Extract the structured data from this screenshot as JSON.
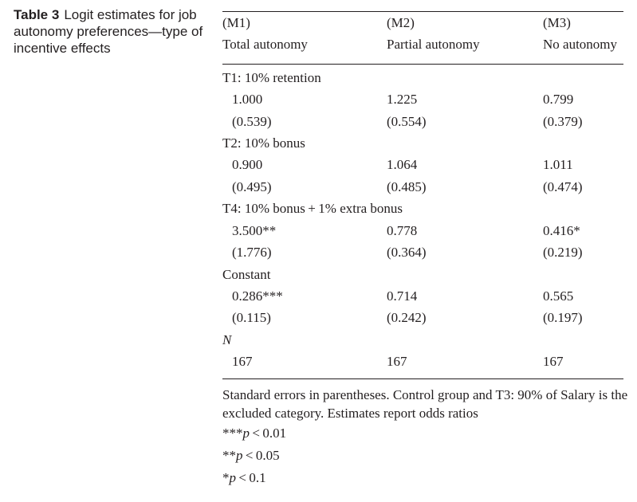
{
  "caption": {
    "label": "Table 3",
    "text": "Logit estimates for job autonomy preferences—type of incentive effects"
  },
  "header": {
    "models": [
      "(M1)",
      "(M2)",
      "(M3)"
    ],
    "outcomes": [
      "Total autonomy",
      "Partial autonomy",
      "No autonomy"
    ]
  },
  "rows": [
    {
      "label": "T1: 10% retention",
      "coef": [
        "1.000",
        "1.225",
        "0.799"
      ],
      "se": [
        "(0.539)",
        "(0.554)",
        "(0.379)"
      ]
    },
    {
      "label": "T2: 10% bonus",
      "coef": [
        "0.900",
        "1.064",
        "1.011"
      ],
      "se": [
        "(0.495)",
        "(0.485)",
        "(0.474)"
      ]
    },
    {
      "label": "T4: 10% bonus + 1% extra bonus",
      "coef": [
        "3.500**",
        "0.778",
        "0.416*"
      ],
      "se": [
        "(1.776)",
        "(0.364)",
        "(0.219)"
      ]
    },
    {
      "label": "Constant",
      "coef": [
        "0.286***",
        "0.714",
        "0.565"
      ],
      "se": [
        "(0.115)",
        "(0.242)",
        "(0.197)"
      ]
    }
  ],
  "n_row": {
    "label": "N",
    "values": [
      "167",
      "167",
      "167"
    ]
  },
  "notes": {
    "text": "Standard errors in parentheses. Control group and T3: 90% of Salary is the excluded category. Estimates report odds ratios",
    "sig": [
      {
        "stars": "***",
        "var": "p",
        "rel": " < 0.01"
      },
      {
        "stars": "**",
        "var": "p",
        "rel": " < 0.05"
      },
      {
        "stars": "*",
        "var": "p",
        "rel": " < 0.1"
      }
    ]
  }
}
